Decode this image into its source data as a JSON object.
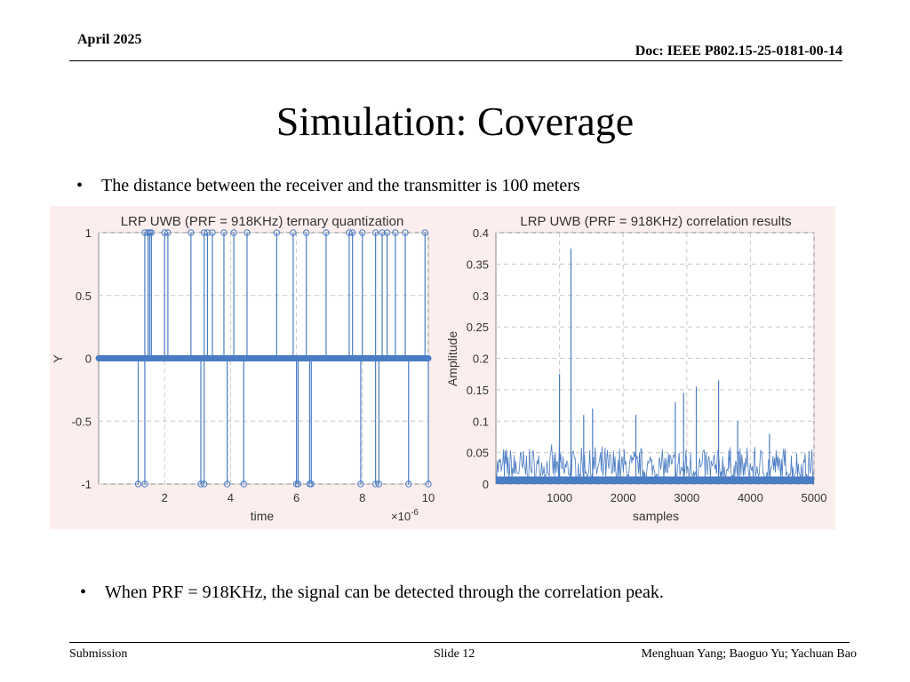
{
  "header": {
    "date": "April 2025",
    "doc": "Doc: IEEE P802.15-25-0181-00-14"
  },
  "slide": {
    "title": "Simulation: Coverage",
    "bullet1": "The distance between the receiver and the transmitter is 100 meters",
    "bullet2": "When PRF = 918KHz, the signal can be detected through the correlation peak.",
    "bullet_marker": "•"
  },
  "footer": {
    "left": "Submission",
    "center": "Slide 12",
    "right": "Menghuan Yang; Baoguo Yu; Yachuan Bao"
  },
  "colors": {
    "series": "#4a7cc4",
    "background_tint": "#fdeeee",
    "grid": "#c8c8c8"
  },
  "chart_data": [
    {
      "type": "stem",
      "title": "LRP UWB (PRF = 918KHz) ternary quantization",
      "xlabel": "time",
      "xexponent_label": "×10",
      "xexponent": "-6",
      "ylabel": "Y",
      "xlim": [
        0,
        10
      ],
      "ylim": [
        -1,
        1
      ],
      "xticks": [
        2,
        4,
        6,
        8,
        10
      ],
      "yticks": [
        -1,
        -0.5,
        0,
        0.5,
        1
      ],
      "grid": true,
      "baseline_value": 0,
      "series": [
        {
          "values_at_plus1": [
            1.4,
            1.5,
            1.55,
            1.6,
            2.0,
            2.1,
            2.8,
            3.2,
            3.3,
            3.45,
            3.8,
            4.1,
            4.5,
            5.4,
            5.9,
            6.3,
            6.9,
            7.6,
            7.7,
            8.0,
            8.4,
            8.6,
            8.75,
            9.0,
            9.3,
            9.9
          ]
        },
        {
          "values_at_minus1": [
            1.2,
            1.4,
            3.1,
            3.2,
            3.9,
            4.4,
            6.0,
            6.05,
            6.4,
            6.45,
            7.95,
            8.4,
            8.5,
            9.4,
            10.0
          ]
        }
      ]
    },
    {
      "type": "line",
      "title": "LRP UWB (PRF = 918KHz)  correlation results",
      "xlabel": "samples",
      "ylabel": "Amplitude",
      "xlim": [
        0,
        5000
      ],
      "ylim": [
        0,
        0.4
      ],
      "xticks": [
        1000,
        2000,
        3000,
        4000,
        5000
      ],
      "yticks": [
        0,
        0.05,
        0.1,
        0.15,
        0.2,
        0.25,
        0.3,
        0.35,
        0.4
      ],
      "grid": true,
      "noise_floor_approx": 0.03,
      "peaks": [
        {
          "x": 1180,
          "y": 0.375
        },
        {
          "x": 1000,
          "y": 0.175
        },
        {
          "x": 3500,
          "y": 0.165
        },
        {
          "x": 3150,
          "y": 0.155
        },
        {
          "x": 2950,
          "y": 0.145
        },
        {
          "x": 2820,
          "y": 0.13
        },
        {
          "x": 1520,
          "y": 0.12
        },
        {
          "x": 1380,
          "y": 0.11
        },
        {
          "x": 2200,
          "y": 0.11
        },
        {
          "x": 3800,
          "y": 0.1
        },
        {
          "x": 4300,
          "y": 0.08
        }
      ]
    }
  ]
}
